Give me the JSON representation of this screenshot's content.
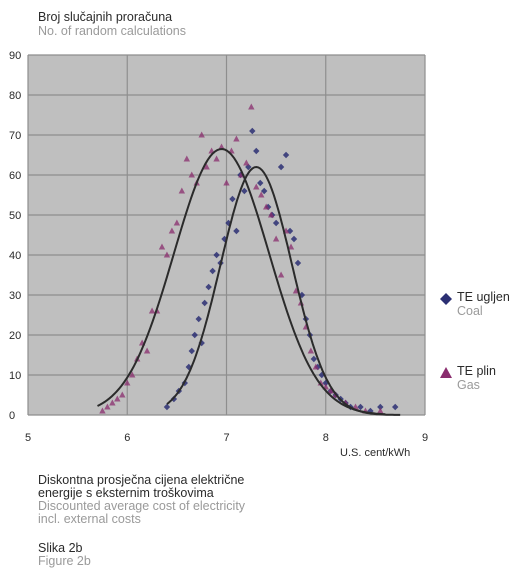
{
  "chart_data": {
    "type": "scatter",
    "y_title": "Broj slučajnih proračuna",
    "y_title_en": "No. of random calculations",
    "x_unit": "U.S. cent/kWh",
    "x_ticks": [
      "5",
      "6",
      "7",
      "8",
      "9"
    ],
    "y_ticks": [
      "0",
      "10",
      "20",
      "30",
      "40",
      "50",
      "60",
      "70",
      "80",
      "90"
    ],
    "xlim": [
      5,
      9
    ],
    "ylim": [
      0,
      90
    ],
    "grid": true,
    "legend_position": "right",
    "series": [
      {
        "name": "TE ugljen",
        "name_en": "Coal",
        "marker": "diamond",
        "color": "#2b2f73",
        "points": [
          [
            6.4,
            2
          ],
          [
            6.47,
            4
          ],
          [
            6.52,
            6
          ],
          [
            6.58,
            8
          ],
          [
            6.62,
            12
          ],
          [
            6.65,
            16
          ],
          [
            6.68,
            20
          ],
          [
            6.72,
            24
          ],
          [
            6.75,
            18
          ],
          [
            6.78,
            28
          ],
          [
            6.82,
            32
          ],
          [
            6.86,
            36
          ],
          [
            6.9,
            40
          ],
          [
            6.94,
            38
          ],
          [
            6.98,
            44
          ],
          [
            7.02,
            48
          ],
          [
            7.06,
            54
          ],
          [
            7.1,
            46
          ],
          [
            7.14,
            60
          ],
          [
            7.18,
            56
          ],
          [
            7.22,
            62
          ],
          [
            7.26,
            71
          ],
          [
            7.3,
            66
          ],
          [
            7.34,
            58
          ],
          [
            7.38,
            56
          ],
          [
            7.42,
            52
          ],
          [
            7.46,
            50
          ],
          [
            7.5,
            48
          ],
          [
            7.55,
            62
          ],
          [
            7.6,
            65
          ],
          [
            7.64,
            46
          ],
          [
            7.68,
            44
          ],
          [
            7.72,
            38
          ],
          [
            7.76,
            30
          ],
          [
            7.8,
            24
          ],
          [
            7.84,
            20
          ],
          [
            7.88,
            14
          ],
          [
            7.92,
            12
          ],
          [
            7.96,
            10
          ],
          [
            8.0,
            8
          ],
          [
            8.05,
            6
          ],
          [
            8.1,
            5
          ],
          [
            8.15,
            4
          ],
          [
            8.2,
            3
          ],
          [
            8.25,
            2
          ],
          [
            8.35,
            2
          ],
          [
            8.45,
            1
          ],
          [
            8.55,
            2
          ],
          [
            8.7,
            2
          ]
        ]
      },
      {
        "name": "TE plin",
        "name_en": "Gas",
        "marker": "triangle",
        "color": "#8a2c6e",
        "points": [
          [
            5.75,
            1
          ],
          [
            5.8,
            2
          ],
          [
            5.85,
            3
          ],
          [
            5.9,
            4
          ],
          [
            5.95,
            5
          ],
          [
            6.0,
            8
          ],
          [
            6.05,
            10
          ],
          [
            6.1,
            14
          ],
          [
            6.15,
            18
          ],
          [
            6.2,
            16
          ],
          [
            6.25,
            26
          ],
          [
            6.3,
            26
          ],
          [
            6.35,
            42
          ],
          [
            6.4,
            40
          ],
          [
            6.45,
            46
          ],
          [
            6.5,
            48
          ],
          [
            6.55,
            56
          ],
          [
            6.6,
            64
          ],
          [
            6.65,
            60
          ],
          [
            6.7,
            58
          ],
          [
            6.75,
            70
          ],
          [
            6.8,
            62
          ],
          [
            6.85,
            66
          ],
          [
            6.9,
            64
          ],
          [
            6.95,
            67
          ],
          [
            7.0,
            58
          ],
          [
            7.05,
            66
          ],
          [
            7.1,
            69
          ],
          [
            7.15,
            60
          ],
          [
            7.2,
            63
          ],
          [
            7.25,
            77
          ],
          [
            7.3,
            57
          ],
          [
            7.35,
            55
          ],
          [
            7.4,
            52
          ],
          [
            7.45,
            50
          ],
          [
            7.5,
            44
          ],
          [
            7.55,
            35
          ],
          [
            7.6,
            46
          ],
          [
            7.65,
            42
          ],
          [
            7.7,
            31
          ],
          [
            7.75,
            28
          ],
          [
            7.8,
            22
          ],
          [
            7.85,
            16
          ],
          [
            7.9,
            12
          ],
          [
            7.95,
            8
          ],
          [
            8.0,
            7
          ],
          [
            8.05,
            6
          ],
          [
            8.1,
            5
          ],
          [
            8.2,
            3
          ],
          [
            8.3,
            2
          ],
          [
            8.4,
            1
          ],
          [
            8.55,
            1
          ]
        ]
      }
    ],
    "fit_curves": [
      {
        "name": "TE plin",
        "mean": 6.95,
        "sd": 0.48,
        "peak": 66.5,
        "x_from": 5.7,
        "x_to": 8.6
      },
      {
        "name": "TE ugljen",
        "mean": 7.3,
        "sd": 0.36,
        "peak": 62.0,
        "x_from": 6.4,
        "x_to": 8.75
      }
    ]
  },
  "caption": {
    "line1": "Diskontna prosječna cijena električne",
    "line2": "energije s eksternim troškovima",
    "line3": "Discounted average cost of electricity",
    "line4": "incl. external costs"
  },
  "figure": {
    "label": "Slika 2b",
    "label_en": "Figure 2b"
  }
}
